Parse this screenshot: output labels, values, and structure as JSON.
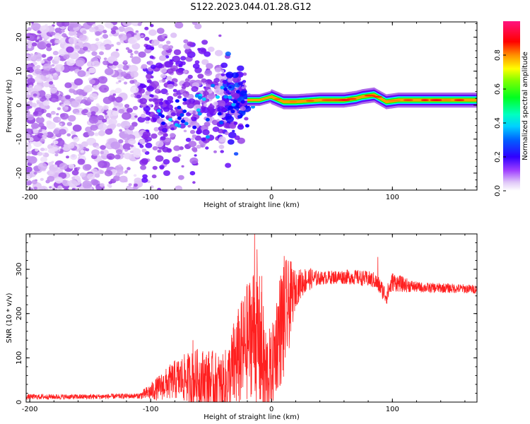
{
  "figure_title": "S122.2023.044.01.28.G12",
  "chart_data": [
    {
      "type": "heatmap",
      "title": "S122.2023.044.01.28.G12",
      "xlabel": "Height of straight line (km)",
      "ylabel": "Frequency (Hz)",
      "xlim": [
        -203,
        170
      ],
      "ylim": [
        -25,
        24.5
      ],
      "xticks": [
        -200,
        -100,
        0,
        100
      ],
      "yticks": [
        -20,
        -10,
        0,
        10,
        20
      ],
      "colorbar": {
        "label": "Normalized spectral amplitude",
        "range": [
          0,
          1
        ],
        "ticks": [
          0.0,
          0.2,
          0.4,
          0.6,
          0.8
        ],
        "colormap": [
          "#ffffff",
          "#d9b8f5",
          "#8a2be2",
          "#5a00ff",
          "#0000ff",
          "#00aaff",
          "#00ffff",
          "#00ff80",
          "#00ff00",
          "#80ff00",
          "#ffff00",
          "#ffa500",
          "#ff0000",
          "#ff1493"
        ]
      },
      "features": {
        "tone_line": {
          "x_start": -20,
          "x_end": 170,
          "freq_hz": [
            [
              -20,
              1.5
            ],
            [
              -10,
              1.5
            ],
            [
              0,
              2.5
            ],
            [
              10,
              1.0
            ],
            [
              20,
              1.0
            ],
            [
              40,
              1.5
            ],
            [
              60,
              1.5
            ],
            [
              70,
              2.0
            ],
            [
              75,
              2.5
            ],
            [
              85,
              3.0
            ],
            [
              95,
              1.0
            ],
            [
              105,
              1.5
            ],
            [
              130,
              1.5
            ],
            [
              170,
              1.5
            ]
          ]
        },
        "scatter_region": {
          "x_start": -203,
          "x_end": -20,
          "freq_range_hz": [
            -25,
            24.5
          ]
        }
      },
      "grid": false
    },
    {
      "type": "line",
      "xlabel": "Height of straight line (km)",
      "ylabel": "SNR (10 * v/v)",
      "xlim": [
        -203,
        170
      ],
      "ylim": [
        0,
        380
      ],
      "xticks": [
        -200,
        -100,
        0,
        100
      ],
      "yticks": [
        0,
        100,
        200,
        300
      ],
      "color": "#ff2020",
      "envelope": {
        "x": [
          -203,
          -150,
          -110,
          -100,
          -90,
          -80,
          -70,
          -60,
          -50,
          -40,
          -35,
          -30,
          -25,
          -20,
          -15,
          -10,
          -5,
          0,
          5,
          10,
          15,
          20,
          25,
          30,
          40,
          50,
          60,
          70,
          80,
          85,
          90,
          95,
          100,
          110,
          120,
          130,
          140,
          150,
          160,
          170
        ],
        "y": [
          12,
          12,
          14,
          25,
          40,
          55,
          60,
          60,
          55,
          45,
          60,
          100,
          120,
          150,
          180,
          150,
          70,
          80,
          160,
          200,
          230,
          255,
          270,
          278,
          280,
          282,
          283,
          282,
          278,
          275,
          260,
          240,
          272,
          265,
          260,
          258,
          258,
          257,
          256,
          255
        ]
      },
      "noise_amplitude": {
        "x": [
          -203,
          -110,
          -100,
          -60,
          -40,
          -30,
          -10,
          0,
          10,
          20,
          40,
          80,
          100,
          120,
          170
        ],
        "y": [
          6,
          6,
          20,
          70,
          70,
          110,
          160,
          90,
          150,
          40,
          15,
          18,
          22,
          12,
          10
        ]
      },
      "peaks": [
        {
          "x": -14,
          "y": 380
        },
        {
          "x": -12,
          "y": 345
        },
        {
          "x": 10,
          "y": 305
        },
        {
          "x": -8,
          "y": 285
        },
        {
          "x": 88,
          "y": 328
        },
        {
          "x": -65,
          "y": 140
        }
      ],
      "grid": false
    }
  ]
}
